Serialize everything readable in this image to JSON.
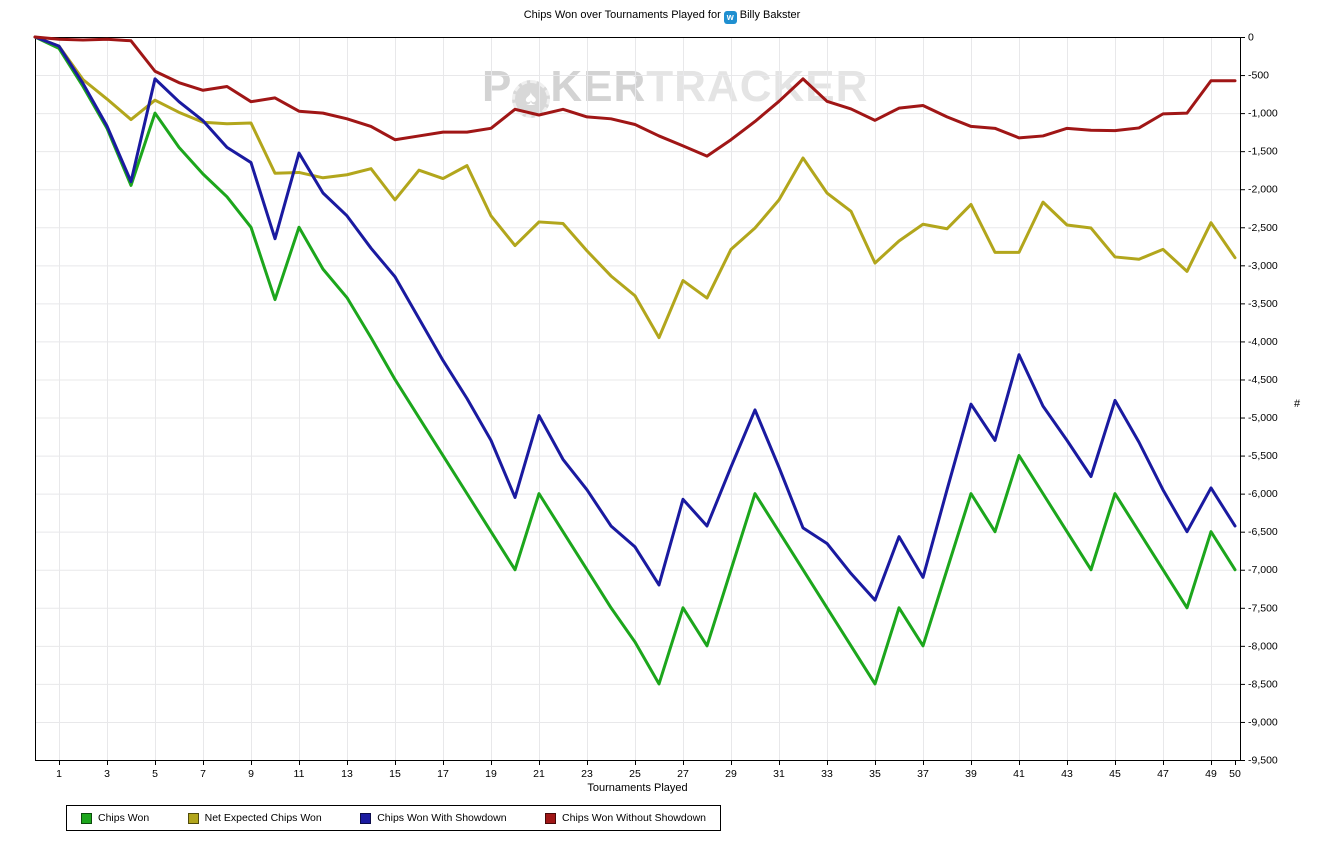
{
  "title": {
    "text_before_icon": "Chips Won over Tournaments Played for",
    "player_name": "Billy Bakster",
    "site_icon_glyph": "w"
  },
  "watermark": {
    "part1": "P",
    "chip_glyph": "♠",
    "part2": "KER",
    "part3": "TRACKER"
  },
  "chart_data": {
    "type": "line",
    "title": "Chips Won over Tournaments Played for Billy Bakster",
    "xlabel": "Tournaments Played",
    "ylabel": "#",
    "xlim": [
      0,
      50
    ],
    "ylim": [
      -9500,
      0
    ],
    "grid": true,
    "legend_position": "bottom-left",
    "x_tick_labels": [
      "1",
      "3",
      "5",
      "7",
      "9",
      "11",
      "13",
      "15",
      "17",
      "19",
      "21",
      "23",
      "25",
      "27",
      "29",
      "31",
      "33",
      "35",
      "37",
      "39",
      "41",
      "43",
      "45",
      "47",
      "49",
      "50"
    ],
    "x_tick_values": [
      1,
      3,
      5,
      7,
      9,
      11,
      13,
      15,
      17,
      19,
      21,
      23,
      25,
      27,
      29,
      31,
      33,
      35,
      37,
      39,
      41,
      43,
      45,
      47,
      49,
      50
    ],
    "y_tick_labels": [
      "0",
      "-500",
      "-1,000",
      "-1,500",
      "-2,000",
      "-2,500",
      "-3,000",
      "-3,500",
      "-4,000",
      "-4,500",
      "-5,000",
      "-5,500",
      "-6,000",
      "-6,500",
      "-7,000",
      "-7,500",
      "-8,000",
      "-8,500",
      "-9,000",
      "-9,500"
    ],
    "y_tick_values": [
      0,
      -500,
      -1000,
      -1500,
      -2000,
      -2500,
      -3000,
      -3500,
      -4000,
      -4500,
      -5000,
      -5500,
      -6000,
      -6500,
      -7000,
      -7500,
      -8000,
      -8500,
      -9000,
      -9500
    ],
    "x_start": 0,
    "colors": {
      "grid": "#e8e8ea",
      "axis": "#000000",
      "background": "#ffffff"
    },
    "series": [
      {
        "name": "Chips Won",
        "color": "#1ca61c",
        "values": [
          0,
          -150,
          -650,
          -1200,
          -1950,
          -1000,
          -1450,
          -1800,
          -2100,
          -2500,
          -3450,
          -2500,
          -3050,
          -3425,
          -3950,
          -4500,
          -5000,
          -5500,
          -6000,
          -6500,
          -7000,
          -6000,
          -6500,
          -7000,
          -7500,
          -7950,
          -8500,
          -7500,
          -8000,
          -7000,
          -6000,
          -6500,
          -7000,
          -7500,
          -8000,
          -8500,
          -7500,
          -8000,
          -7000,
          -6000,
          -6500,
          -5500,
          -6000,
          -6500,
          -7000,
          -6000,
          -6500,
          -7000,
          -7500,
          -6500,
          -7000
        ]
      },
      {
        "name": "Net Expected Chips Won",
        "color": "#b2a61c",
        "values": [
          0,
          -120,
          -560,
          -815,
          -1085,
          -830,
          -990,
          -1120,
          -1140,
          -1130,
          -1790,
          -1780,
          -1850,
          -1810,
          -1730,
          -2140,
          -1750,
          -1860,
          -1690,
          -2350,
          -2740,
          -2430,
          -2450,
          -2810,
          -3140,
          -3400,
          -3950,
          -3200,
          -3430,
          -2790,
          -2510,
          -2140,
          -1590,
          -2050,
          -2290,
          -2970,
          -2680,
          -2460,
          -2520,
          -2200,
          -2830,
          -2830,
          -2170,
          -2470,
          -2510,
          -2890,
          -2920,
          -2790,
          -3080,
          -2440,
          -2900
        ]
      },
      {
        "name": "Chips Won With Showdown",
        "color": "#1a1aa0",
        "values": [
          0,
          -120,
          -610,
          -1170,
          -1900,
          -550,
          -850,
          -1100,
          -1450,
          -1650,
          -2650,
          -1525,
          -2050,
          -2350,
          -2775,
          -3150,
          -3700,
          -4250,
          -4750,
          -5300,
          -6050,
          -4975,
          -5550,
          -5950,
          -6425,
          -6700,
          -7200,
          -6075,
          -6425,
          -5650,
          -4900,
          -5655,
          -6450,
          -6655,
          -7050,
          -7400,
          -6565,
          -7100,
          -5950,
          -4825,
          -5300,
          -4175,
          -4850,
          -5300,
          -5775,
          -4775,
          -5325,
          -5950,
          -6500,
          -5925,
          -6425
        ]
      },
      {
        "name": "Chips Won Without Showdown",
        "color": "#a01616",
        "values": [
          0,
          -30,
          -40,
          -30,
          -50,
          -450,
          -600,
          -700,
          -650,
          -850,
          -800,
          -975,
          -1000,
          -1075,
          -1175,
          -1350,
          -1300,
          -1250,
          -1250,
          -1200,
          -950,
          -1025,
          -950,
          -1050,
          -1075,
          -1150,
          -1300,
          -1430,
          -1565,
          -1350,
          -1110,
          -845,
          -550,
          -845,
          -945,
          -1095,
          -935,
          -900,
          -1050,
          -1175,
          -1200,
          -1325,
          -1300,
          -1200,
          -1225,
          -1230,
          -1195,
          -1010,
          -1000,
          -575,
          -575
        ]
      }
    ]
  }
}
